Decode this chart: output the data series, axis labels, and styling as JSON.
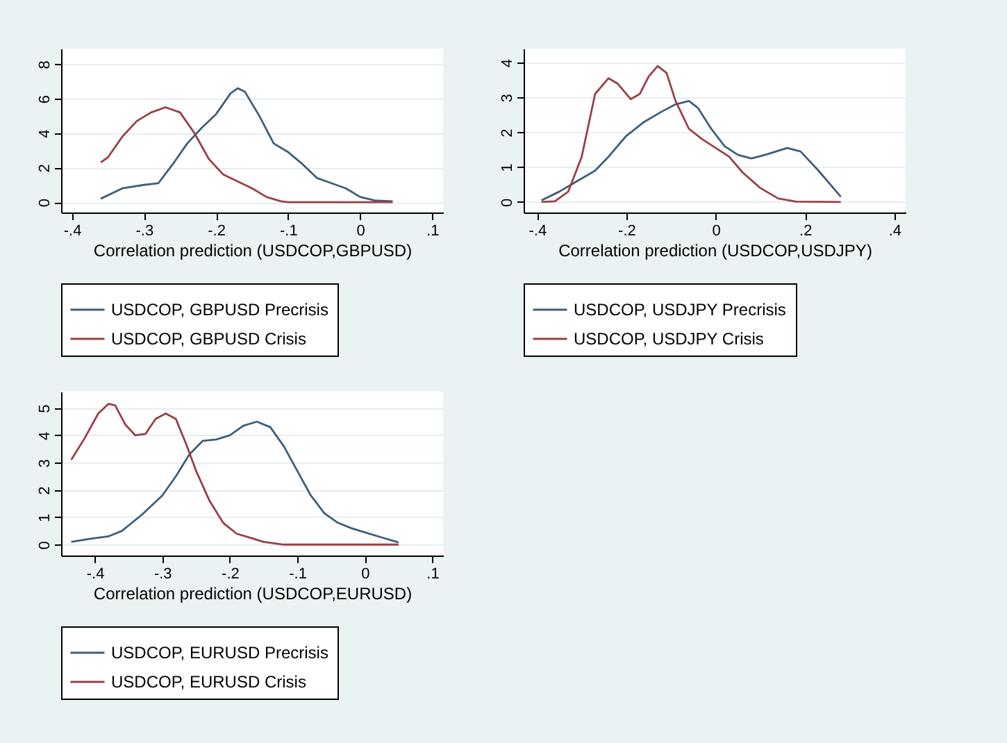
{
  "chart_data": [
    {
      "type": "line",
      "xlabel": "Correlation prediction (USDCOP,GBPUSD)",
      "xlim": [
        -0.415,
        0.115
      ],
      "xticks": [
        {
          "value": -0.4,
          "label": "-.4"
        },
        {
          "value": -0.3,
          "label": "-.3"
        },
        {
          "value": -0.2,
          "label": "-.2"
        },
        {
          "value": -0.1,
          "label": "-.1"
        },
        {
          "value": 0,
          "label": "0"
        },
        {
          "value": 0.1,
          "label": ".1"
        }
      ],
      "ylim": [
        -0.6,
        8.9
      ],
      "yticks": [
        0,
        2,
        4,
        6,
        8
      ],
      "grid": "y",
      "legend": "bottom",
      "series": [
        {
          "name": "USDCOP, GBPUSD Precrisis",
          "color": "#3b5f7e",
          "x": [
            -0.36,
            -0.33,
            -0.3,
            -0.28,
            -0.26,
            -0.24,
            -0.22,
            -0.2,
            -0.18,
            -0.17,
            -0.16,
            -0.14,
            -0.12,
            -0.1,
            -0.08,
            -0.06,
            -0.04,
            -0.02,
            0,
            0.02,
            0.045
          ],
          "values": [
            0.2,
            0.8,
            1.0,
            1.1,
            2.2,
            3.4,
            4.3,
            5.1,
            6.3,
            6.6,
            6.4,
            5.0,
            3.4,
            2.9,
            2.2,
            1.4,
            1.1,
            0.8,
            0.3,
            0.1,
            0.05
          ]
        },
        {
          "name": "USDCOP, GBPUSD Crisis",
          "color": "#9b3f45",
          "x": [
            -0.36,
            -0.35,
            -0.33,
            -0.31,
            -0.29,
            -0.27,
            -0.25,
            -0.23,
            -0.21,
            -0.19,
            -0.17,
            -0.15,
            -0.13,
            -0.11,
            -0.1,
            0.045
          ],
          "values": [
            2.3,
            2.6,
            3.8,
            4.7,
            5.2,
            5.5,
            5.2,
            4.0,
            2.5,
            1.6,
            1.2,
            0.8,
            0.3,
            0.05,
            0,
            0
          ]
        }
      ]
    },
    {
      "type": "line",
      "xlabel": "Correlation prediction (USDCOP,USDJPY)",
      "xlim": [
        -0.43,
        0.425
      ],
      "xticks": [
        {
          "value": -0.4,
          "label": "-.4"
        },
        {
          "value": -0.2,
          "label": "-.2"
        },
        {
          "value": 0,
          "label": "0"
        },
        {
          "value": 0.2,
          "label": ".2"
        },
        {
          "value": 0.4,
          "label": ".4"
        }
      ],
      "ylim": [
        -0.3,
        4.4
      ],
      "yticks": [
        0,
        1,
        2,
        3,
        4
      ],
      "grid": "y",
      "legend": "bottom",
      "series": [
        {
          "name": "USDCOP, USDJPY Precrisis",
          "color": "#3b5f7e",
          "x": [
            -0.39,
            -0.35,
            -0.31,
            -0.27,
            -0.24,
            -0.2,
            -0.16,
            -0.12,
            -0.09,
            -0.06,
            -0.04,
            -0.01,
            0.02,
            0.05,
            0.08,
            0.11,
            0.16,
            0.19,
            0.23,
            0.28
          ],
          "values": [
            0.05,
            0.3,
            0.6,
            0.9,
            1.3,
            1.9,
            2.3,
            2.6,
            2.8,
            2.9,
            2.7,
            2.1,
            1.6,
            1.35,
            1.25,
            1.35,
            1.55,
            1.45,
            0.9,
            0.15
          ]
        },
        {
          "name": "USDCOP, USDJPY Crisis",
          "color": "#9b3f45",
          "x": [
            -0.39,
            -0.36,
            -0.33,
            -0.3,
            -0.27,
            -0.24,
            -0.22,
            -0.19,
            -0.17,
            -0.15,
            -0.13,
            -0.11,
            -0.09,
            -0.06,
            -0.03,
            0,
            0.03,
            0.06,
            0.1,
            0.14,
            0.18,
            0.28
          ],
          "values": [
            0,
            0.02,
            0.3,
            1.3,
            3.1,
            3.55,
            3.4,
            2.95,
            3.1,
            3.6,
            3.9,
            3.7,
            2.9,
            2.1,
            1.8,
            1.55,
            1.3,
            0.85,
            0.4,
            0.1,
            0.01,
            0
          ]
        }
      ]
    },
    {
      "type": "line",
      "xlabel": "Correlation prediction (USDCOP,EURUSD)",
      "xlim": [
        -0.45,
        0.116
      ],
      "xticks": [
        {
          "value": -0.4,
          "label": "-.4"
        },
        {
          "value": -0.3,
          "label": "-.3"
        },
        {
          "value": -0.2,
          "label": "-.2"
        },
        {
          "value": -0.1,
          "label": "-.1"
        },
        {
          "value": 0,
          "label": "0"
        },
        {
          "value": 0.1,
          "label": ".1"
        }
      ],
      "ylim": [
        -0.4,
        5.6
      ],
      "yticks": [
        0,
        1,
        2,
        3,
        4,
        5
      ],
      "grid": "y",
      "legend": "bottom",
      "series": [
        {
          "name": "USDCOP, EURUSD Precrisis",
          "color": "#3b5f7e",
          "x": [
            -0.435,
            -0.41,
            -0.38,
            -0.36,
            -0.33,
            -0.3,
            -0.28,
            -0.26,
            -0.24,
            -0.22,
            -0.2,
            -0.18,
            -0.16,
            -0.14,
            -0.12,
            -0.1,
            -0.08,
            -0.06,
            -0.04,
            -0.02,
            0,
            0.02,
            0.05
          ],
          "values": [
            0.1,
            0.2,
            0.3,
            0.5,
            1.1,
            1.8,
            2.5,
            3.3,
            3.8,
            3.85,
            4.0,
            4.35,
            4.5,
            4.3,
            3.6,
            2.7,
            1.8,
            1.15,
            0.8,
            0.6,
            0.45,
            0.3,
            0.08
          ]
        },
        {
          "name": "USDCOP, EURUSD Crisis",
          "color": "#9b3f45",
          "x": [
            -0.435,
            -0.415,
            -0.395,
            -0.38,
            -0.37,
            -0.355,
            -0.34,
            -0.325,
            -0.31,
            -0.295,
            -0.28,
            -0.265,
            -0.25,
            -0.23,
            -0.21,
            -0.19,
            -0.17,
            -0.15,
            -0.12,
            0.05
          ],
          "values": [
            3.1,
            3.9,
            4.8,
            5.15,
            5.1,
            4.4,
            4.0,
            4.05,
            4.6,
            4.8,
            4.6,
            3.7,
            2.7,
            1.6,
            0.8,
            0.4,
            0.25,
            0.1,
            0,
            0
          ]
        }
      ]
    }
  ]
}
